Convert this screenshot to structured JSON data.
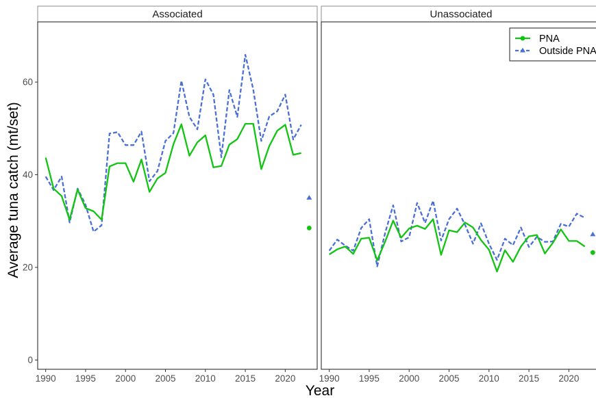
{
  "chart_data": {
    "type": "line",
    "xlabel": "Year",
    "ylabel": "Average tuna catch (mt/set)",
    "xlim": [
      1989,
      2024
    ],
    "ylim": [
      -2,
      73
    ],
    "x_ticks": [
      1990,
      1995,
      2000,
      2005,
      2010,
      2015,
      2020
    ],
    "y_ticks": [
      0,
      20,
      40,
      60
    ],
    "grid": false,
    "legend_position": "top-right",
    "colors": {
      "PNA": "#11c411",
      "Outside PNA": "#4a6fd6"
    },
    "legend": [
      {
        "label": "PNA",
        "series": "PNA",
        "marker": "circle",
        "dash": false
      },
      {
        "label": "Outside PNA",
        "series": "Outside PNA",
        "marker": "triangle",
        "dash": true
      }
    ],
    "years": [
      1990,
      1991,
      1992,
      1993,
      1994,
      1995,
      1996,
      1997,
      1998,
      1999,
      2000,
      2001,
      2002,
      2003,
      2004,
      2005,
      2006,
      2007,
      2008,
      2009,
      2010,
      2011,
      2012,
      2013,
      2014,
      2015,
      2016,
      2017,
      2018,
      2019,
      2020,
      2021,
      2022
    ],
    "panels": [
      {
        "label": "Associated",
        "series": [
          {
            "name": "PNA",
            "values": [
              43.7,
              37.0,
              35.4,
              30.3,
              36.8,
              32.8,
              32.1,
              30.3,
              41.8,
              42.5,
              42.5,
              38.5,
              43.3,
              36.3,
              39.2,
              40.4,
              46.6,
              50.9,
              44.1,
              47.0,
              48.5,
              41.6,
              41.9,
              46.5,
              47.7,
              51.0,
              51.0,
              41.2,
              46.2,
              49.5,
              50.8,
              44.3,
              44.7
            ],
            "point": {
              "year": 2023,
              "value": 28.5
            }
          },
          {
            "name": "Outside PNA",
            "values": [
              39.6,
              36.7,
              39.6,
              29.7,
              37.0,
              33.5,
              27.7,
              29.1,
              48.9,
              49.2,
              46.4,
              46.4,
              49.3,
              38.6,
              40.8,
              47.3,
              49.0,
              60.3,
              52.5,
              49.8,
              60.6,
              57.3,
              43.8,
              58.3,
              52.5,
              65.9,
              58.4,
              47.3,
              52.6,
              53.7,
              57.3,
              47.6,
              50.8
            ],
            "point": {
              "year": 2023,
              "value": 35.0
            }
          }
        ]
      },
      {
        "label": "Unassociated",
        "series": [
          {
            "name": "PNA",
            "values": [
              22.8,
              23.9,
              24.5,
              22.9,
              26.2,
              26.4,
              21.5,
              25.6,
              30.1,
              26.4,
              28.4,
              29.0,
              28.3,
              30.4,
              22.7,
              28.0,
              27.6,
              29.7,
              28.6,
              25.9,
              23.8,
              19.1,
              23.7,
              21.2,
              24.5,
              26.7,
              27.0,
              23.0,
              25.3,
              28.2,
              25.7,
              25.7,
              24.5
            ],
            "point": {
              "year": 2023,
              "value": 23.2
            }
          },
          {
            "name": "Outside PNA",
            "values": [
              23.6,
              26.0,
              24.7,
              23.6,
              28.5,
              30.4,
              20.2,
              27.5,
              33.4,
              25.6,
              26.5,
              33.9,
              29.6,
              34.4,
              25.8,
              30.4,
              32.7,
              29.2,
              25.1,
              29.5,
              25.1,
              21.6,
              26.2,
              24.8,
              28.6,
              24.4,
              26.6,
              25.5,
              25.6,
              29.4,
              28.8,
              31.6,
              30.7
            ],
            "point": {
              "year": 2023,
              "value": 27.1
            }
          }
        ]
      }
    ]
  }
}
